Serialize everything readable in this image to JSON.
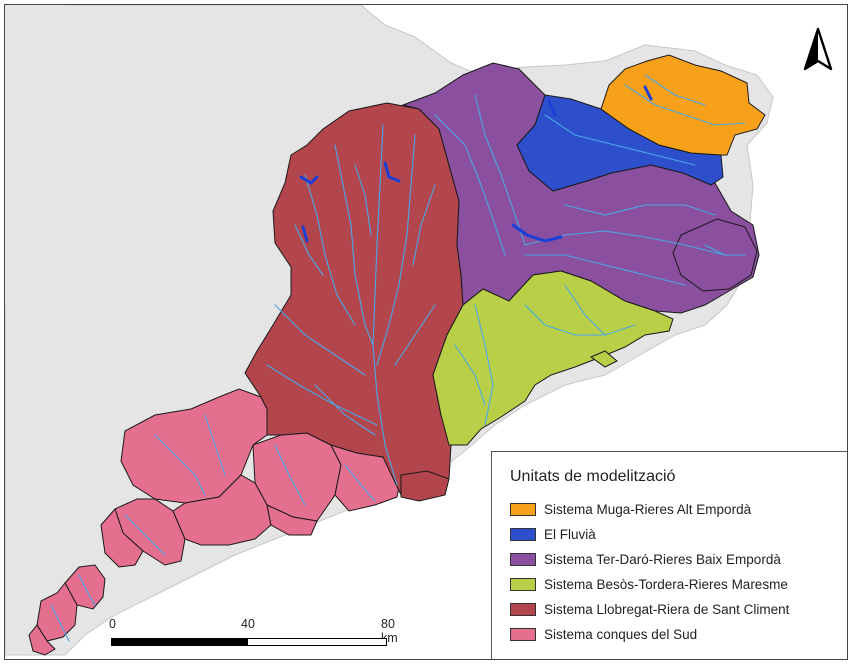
{
  "legend": {
    "title": "Unitats de modelització",
    "items": [
      {
        "label": "Sistema Muga-Rieres Alt Empordà",
        "color": "#f7a11a"
      },
      {
        "label": "El Fluvià",
        "color": "#2e4fcc"
      },
      {
        "label": "Sistema Ter-Daró-Rieres Baix Empordà",
        "color": "#8a4f9e"
      },
      {
        "label": "Sistema Besòs-Tordera-Rieres Maresme",
        "color": "#b9cf48"
      },
      {
        "label": "Sistema Llobregat-Riera de Sant Climent",
        "color": "#b3454c"
      },
      {
        "label": "Sistema conques del Sud",
        "color": "#e56f8f"
      }
    ]
  },
  "scale": {
    "tick_labels": [
      "0",
      "40",
      "80 km"
    ]
  },
  "north_arrow": {
    "icon": "north-arrow-icon"
  },
  "colors": {
    "land": "#e5e5e5",
    "river": "#4aa7e8",
    "reservoir": "#1b3fd6",
    "border": "#1a1a1a"
  }
}
